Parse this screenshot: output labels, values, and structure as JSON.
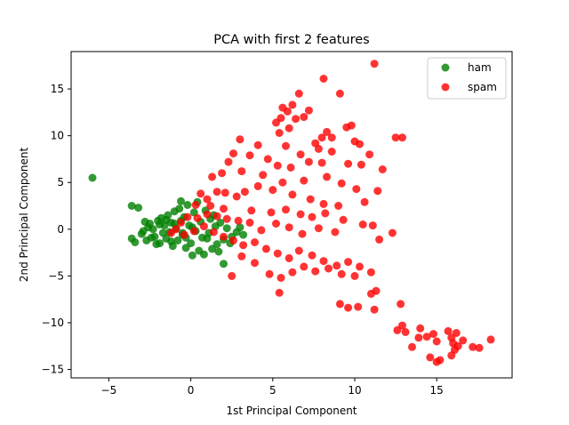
{
  "chart_data": {
    "type": "scatter",
    "title": "PCA with first 2 features",
    "xlabel": "1st Principal Component",
    "ylabel": "2nd Principal Component",
    "xlim": [
      -7.3,
      19.6
    ],
    "ylim": [
      -15.9,
      19.0
    ],
    "xticks": [
      -5,
      0,
      5,
      10,
      15
    ],
    "yticks": [
      -15,
      -10,
      -5,
      0,
      5,
      10,
      15
    ],
    "grid": false,
    "legend_position": "top-right",
    "series": [
      {
        "name": "ham",
        "color": "#008000",
        "points": [
          [
            -6.0,
            5.5
          ],
          [
            -3.6,
            2.5
          ],
          [
            -3.2,
            2.3
          ],
          [
            -3.6,
            -1.0
          ],
          [
            -3.4,
            -1.4
          ],
          [
            -3.0,
            -0.5
          ],
          [
            -2.9,
            -0.2
          ],
          [
            -2.6,
            0.2
          ],
          [
            -2.5,
            0.6
          ],
          [
            -2.3,
            0.0
          ],
          [
            -2.2,
            -0.8
          ],
          [
            -2.0,
            0.9
          ],
          [
            -1.9,
            -1.5
          ],
          [
            -1.8,
            1.2
          ],
          [
            -1.6,
            0.4
          ],
          [
            -1.5,
            -1.0
          ],
          [
            -1.4,
            1.5
          ],
          [
            -1.3,
            -0.3
          ],
          [
            -1.2,
            0.7
          ],
          [
            -1.1,
            -1.8
          ],
          [
            -1.0,
            1.9
          ],
          [
            -0.9,
            0.1
          ],
          [
            -0.8,
            -1.2
          ],
          [
            -0.7,
            2.2
          ],
          [
            -0.6,
            0.9
          ],
          [
            -0.5,
            -0.6
          ],
          [
            -0.4,
            1.3
          ],
          [
            -0.3,
            -2.0
          ],
          [
            -0.2,
            2.6
          ],
          [
            -0.1,
            0.4
          ],
          [
            0.0,
            -1.5
          ],
          [
            0.2,
            1.8
          ],
          [
            0.3,
            -0.2
          ],
          [
            0.4,
            2.9
          ],
          [
            0.5,
            -2.3
          ],
          [
            0.6,
            0.8
          ],
          [
            0.8,
            -2.7
          ],
          [
            0.9,
            2.0
          ],
          [
            1.0,
            -1.0
          ],
          [
            1.2,
            1.1
          ],
          [
            1.3,
            -2.1
          ],
          [
            1.5,
            0.3
          ],
          [
            1.6,
            -1.6
          ],
          [
            1.8,
            0.7
          ],
          [
            2.0,
            -1.1
          ],
          [
            2.0,
            -3.7
          ],
          [
            2.2,
            0.1
          ],
          [
            2.5,
            -0.8
          ],
          [
            2.8,
            -0.3
          ],
          [
            3.0,
            0.2
          ],
          [
            3.2,
            -0.6
          ],
          [
            -0.6,
            3.0
          ],
          [
            0.1,
            -2.8
          ],
          [
            -2.7,
            -1.2
          ],
          [
            -2.1,
            -1.6
          ],
          [
            -1.7,
            -0.4
          ],
          [
            -1.2,
            -1.3
          ],
          [
            -0.5,
            -0.4
          ],
          [
            0.7,
            -0.9
          ],
          [
            1.4,
            1.5
          ],
          [
            -1.9,
            0.5
          ],
          [
            -2.4,
            -0.9
          ],
          [
            -1.0,
            0.6
          ],
          [
            0.1,
            0.2
          ],
          [
            -0.3,
            -0.9
          ],
          [
            1.1,
            -0.4
          ],
          [
            2.4,
            -1.5
          ],
          [
            1.7,
            -2.4
          ],
          [
            -2.8,
            0.8
          ],
          [
            -1.5,
            1.0
          ]
        ]
      },
      {
        "name": "spam",
        "color": "#ff0000",
        "points": [
          [
            11.2,
            17.7
          ],
          [
            8.1,
            16.1
          ],
          [
            9.1,
            14.5
          ],
          [
            6.6,
            14.5
          ],
          [
            5.6,
            13.0
          ],
          [
            6.2,
            13.3
          ],
          [
            5.9,
            12.6
          ],
          [
            7.2,
            12.7
          ],
          [
            6.4,
            11.8
          ],
          [
            5.5,
            11.9
          ],
          [
            6.9,
            12.0
          ],
          [
            5.2,
            11.4
          ],
          [
            9.8,
            11.1
          ],
          [
            9.5,
            10.9
          ],
          [
            6.0,
            10.8
          ],
          [
            5.4,
            10.3
          ],
          [
            8.3,
            10.4
          ],
          [
            8.0,
            9.8
          ],
          [
            8.6,
            9.8
          ],
          [
            10.0,
            9.4
          ],
          [
            12.5,
            9.8
          ],
          [
            12.9,
            9.8
          ],
          [
            10.3,
            9.1
          ],
          [
            7.6,
            9.2
          ],
          [
            5.8,
            8.9
          ],
          [
            4.1,
            9.0
          ],
          [
            3.0,
            9.6
          ],
          [
            7.8,
            8.6
          ],
          [
            8.6,
            8.3
          ],
          [
            6.7,
            8.0
          ],
          [
            10.9,
            8.0
          ],
          [
            11.7,
            6.4
          ],
          [
            9.6,
            7.0
          ],
          [
            10.4,
            6.9
          ],
          [
            8.0,
            7.1
          ],
          [
            7.2,
            7.2
          ],
          [
            6.1,
            6.6
          ],
          [
            5.3,
            6.8
          ],
          [
            4.7,
            7.5
          ],
          [
            3.6,
            7.9
          ],
          [
            2.6,
            8.1
          ],
          [
            2.3,
            7.2
          ],
          [
            1.9,
            6.0
          ],
          [
            1.3,
            5.6
          ],
          [
            3.1,
            6.2
          ],
          [
            4.4,
            5.8
          ],
          [
            5.6,
            5.0
          ],
          [
            6.9,
            5.2
          ],
          [
            8.3,
            5.6
          ],
          [
            9.2,
            4.9
          ],
          [
            10.1,
            4.3
          ],
          [
            11.4,
            4.1
          ],
          [
            10.6,
            2.9
          ],
          [
            9.0,
            2.5
          ],
          [
            8.1,
            2.7
          ],
          [
            7.3,
            3.2
          ],
          [
            6.2,
            3.7
          ],
          [
            5.0,
            4.2
          ],
          [
            4.1,
            4.6
          ],
          [
            3.3,
            4.0
          ],
          [
            2.8,
            3.5
          ],
          [
            2.1,
            3.9
          ],
          [
            1.6,
            4.0
          ],
          [
            1.0,
            3.2
          ],
          [
            0.6,
            3.8
          ],
          [
            0.3,
            2.6
          ],
          [
            1.2,
            2.5
          ],
          [
            2.0,
            2.2
          ],
          [
            3.7,
            2.0
          ],
          [
            4.9,
            1.8
          ],
          [
            5.8,
            2.1
          ],
          [
            6.7,
            1.6
          ],
          [
            7.4,
            1.3
          ],
          [
            8.2,
            1.7
          ],
          [
            9.3,
            1.0
          ],
          [
            10.5,
            0.5
          ],
          [
            11.1,
            0.4
          ],
          [
            8.8,
            -0.3
          ],
          [
            7.8,
            0.1
          ],
          [
            6.8,
            -0.5
          ],
          [
            6.0,
            0.2
          ],
          [
            5.2,
            0.6
          ],
          [
            4.3,
            -0.1
          ],
          [
            3.6,
            0.7
          ],
          [
            2.9,
            0.9
          ],
          [
            2.2,
            1.1
          ],
          [
            1.6,
            1.4
          ],
          [
            1.0,
            1.6
          ],
          [
            0.4,
            1.2
          ],
          [
            -0.2,
            1.3
          ],
          [
            -0.6,
            0.7
          ],
          [
            -0.9,
            0.0
          ],
          [
            -1.2,
            -0.4
          ],
          [
            -0.4,
            -0.6
          ],
          [
            0.2,
            -0.2
          ],
          [
            0.8,
            0.3
          ],
          [
            1.4,
            -0.3
          ],
          [
            2.0,
            -0.8
          ],
          [
            2.6,
            -1.2
          ],
          [
            3.2,
            -1.7
          ],
          [
            3.9,
            -1.4
          ],
          [
            4.6,
            -2.1
          ],
          [
            5.3,
            -2.6
          ],
          [
            6.0,
            -3.1
          ],
          [
            6.6,
            -2.3
          ],
          [
            7.4,
            -2.8
          ],
          [
            8.1,
            -3.4
          ],
          [
            8.9,
            -3.9
          ],
          [
            9.6,
            -3.5
          ],
          [
            10.3,
            -4.0
          ],
          [
            11.0,
            -4.6
          ],
          [
            10.0,
            -5.0
          ],
          [
            9.2,
            -4.8
          ],
          [
            8.4,
            -4.2
          ],
          [
            7.6,
            -4.5
          ],
          [
            6.9,
            -4.0
          ],
          [
            6.2,
            -4.6
          ],
          [
            5.5,
            -5.2
          ],
          [
            4.8,
            -4.8
          ],
          [
            3.9,
            -3.6
          ],
          [
            3.1,
            -2.9
          ],
          [
            2.5,
            -5.0
          ],
          [
            5.4,
            -6.8
          ],
          [
            9.1,
            -8.0
          ],
          [
            9.6,
            -8.4
          ],
          [
            10.2,
            -8.3
          ],
          [
            11.0,
            -6.9
          ],
          [
            11.3,
            -6.6
          ],
          [
            11.2,
            -8.6
          ],
          [
            12.8,
            -8.0
          ],
          [
            12.9,
            -10.3
          ],
          [
            12.6,
            -10.8
          ],
          [
            13.1,
            -11.0
          ],
          [
            13.5,
            -12.6
          ],
          [
            14.0,
            -10.6
          ],
          [
            14.4,
            -11.5
          ],
          [
            14.8,
            -11.2
          ],
          [
            15.0,
            -12.0
          ],
          [
            14.6,
            -13.7
          ],
          [
            15.2,
            -14.0
          ],
          [
            15.0,
            -14.2
          ],
          [
            15.7,
            -10.9
          ],
          [
            15.9,
            -11.6
          ],
          [
            16.0,
            -12.2
          ],
          [
            16.2,
            -11.1
          ],
          [
            15.9,
            -13.5
          ],
          [
            16.3,
            -12.5
          ],
          [
            16.6,
            -11.9
          ],
          [
            17.2,
            -12.6
          ],
          [
            17.6,
            -12.7
          ],
          [
            18.3,
            -11.8
          ],
          [
            16.1,
            -12.9
          ],
          [
            13.9,
            -11.6
          ],
          [
            12.3,
            -0.4
          ],
          [
            11.5,
            -1.1
          ]
        ]
      }
    ]
  }
}
